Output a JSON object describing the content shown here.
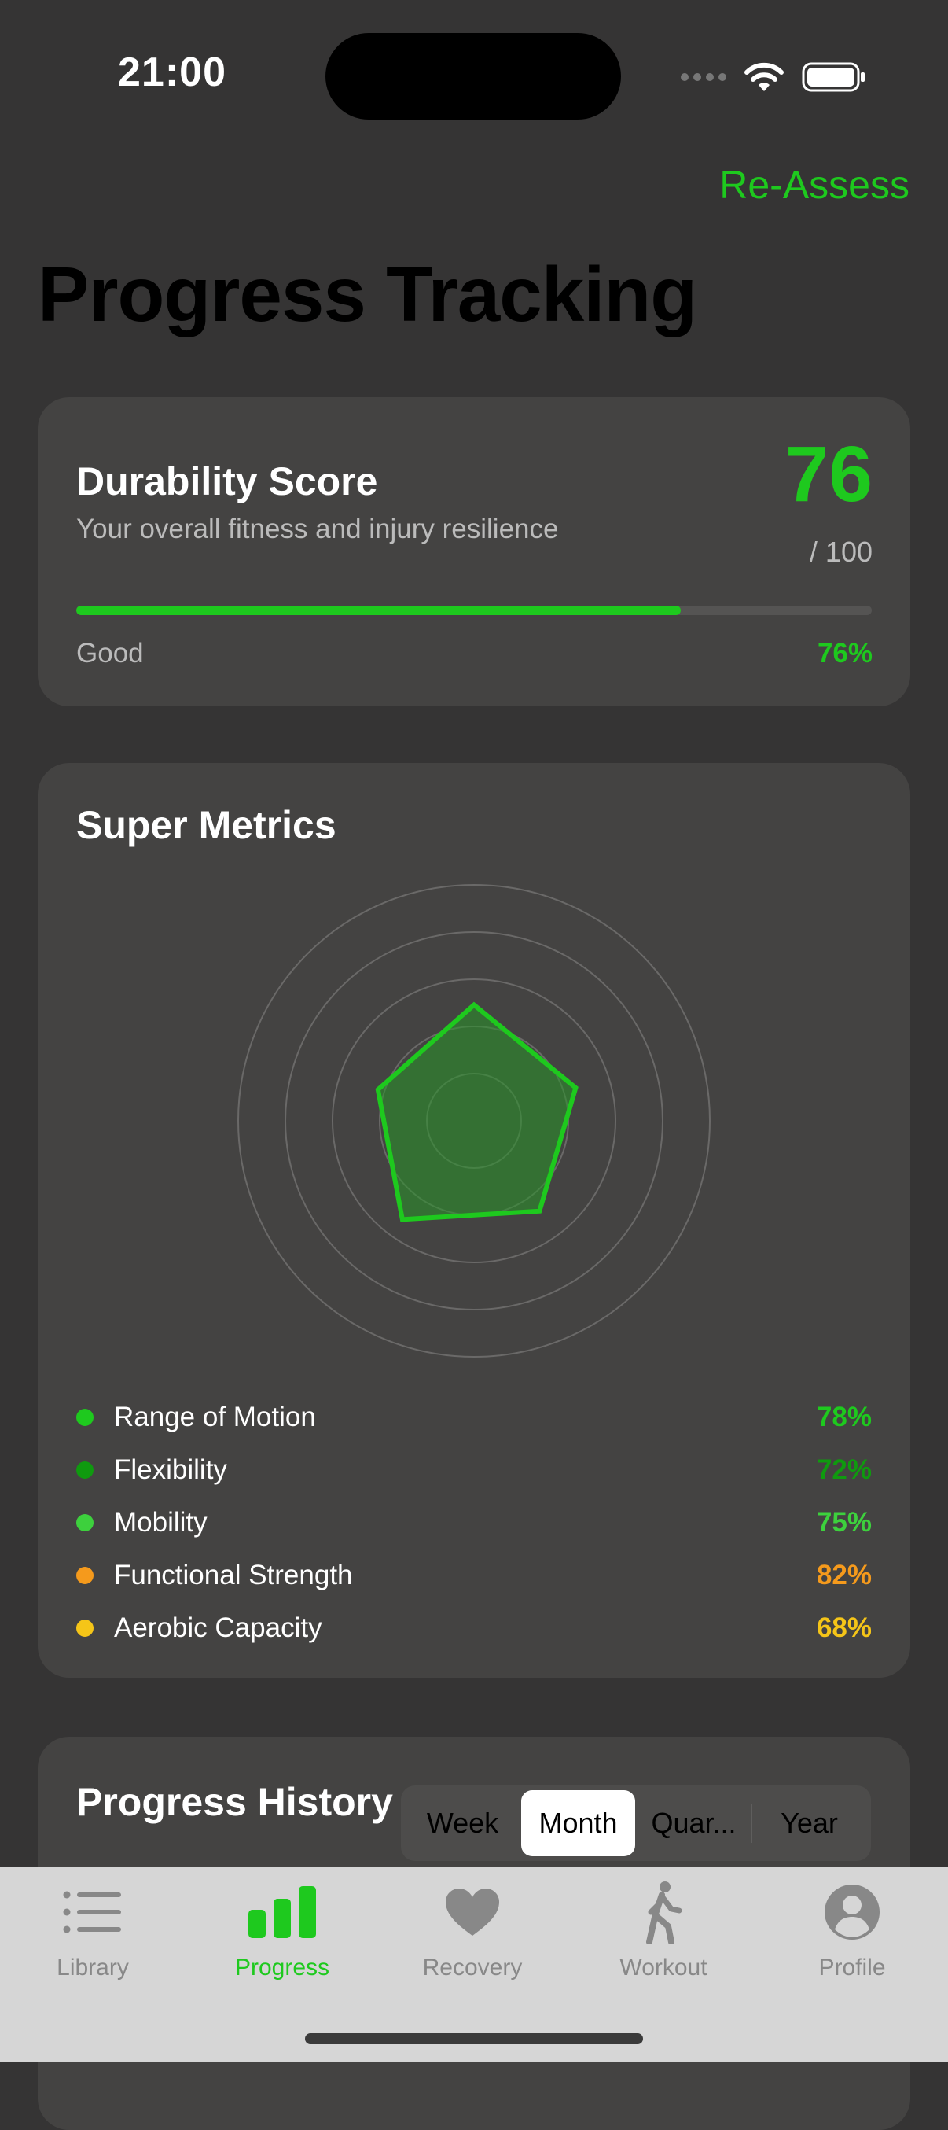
{
  "status": {
    "time": "21:00"
  },
  "header": {
    "reassess_label": "Re-Assess",
    "title": "Progress Tracking"
  },
  "durability": {
    "title": "Durability Score",
    "subtitle": "Your overall fitness and injury resilience",
    "score": "76",
    "max": "/ 100",
    "progress": 0.76,
    "status": "Good",
    "percent": "76%"
  },
  "metrics": {
    "title": "Super Metrics",
    "items": [
      {
        "label": "Range of Motion",
        "value": "78%",
        "color": "#1ec91e"
      },
      {
        "label": "Flexibility",
        "value": "72%",
        "color": "#0f9a0f"
      },
      {
        "label": "Mobility",
        "value": "75%",
        "color": "#3dd03d"
      },
      {
        "label": "Functional Strength",
        "value": "82%",
        "color": "#f59a1c"
      },
      {
        "label": "Aerobic Capacity",
        "value": "68%",
        "color": "#f5c518"
      }
    ]
  },
  "history": {
    "title": "Progress History",
    "segments": [
      {
        "label": "Week",
        "active": false
      },
      {
        "label": "Month",
        "active": true
      },
      {
        "label": "Quar...",
        "active": false
      },
      {
        "label": "Year",
        "active": false
      }
    ]
  },
  "tabs": [
    {
      "label": "Library",
      "icon": "list-icon",
      "active": false
    },
    {
      "label": "Progress",
      "icon": "chart-bars-icon",
      "active": true
    },
    {
      "label": "Recovery",
      "icon": "heart-icon",
      "active": false
    },
    {
      "label": "Workout",
      "icon": "walking-figure-icon",
      "active": false
    },
    {
      "label": "Profile",
      "icon": "person-circle-icon",
      "active": false
    }
  ],
  "colors": {
    "accent": "#1ec91e",
    "background": "#353434",
    "card": "#444342",
    "tab_bar": "#d6d6d6"
  }
}
